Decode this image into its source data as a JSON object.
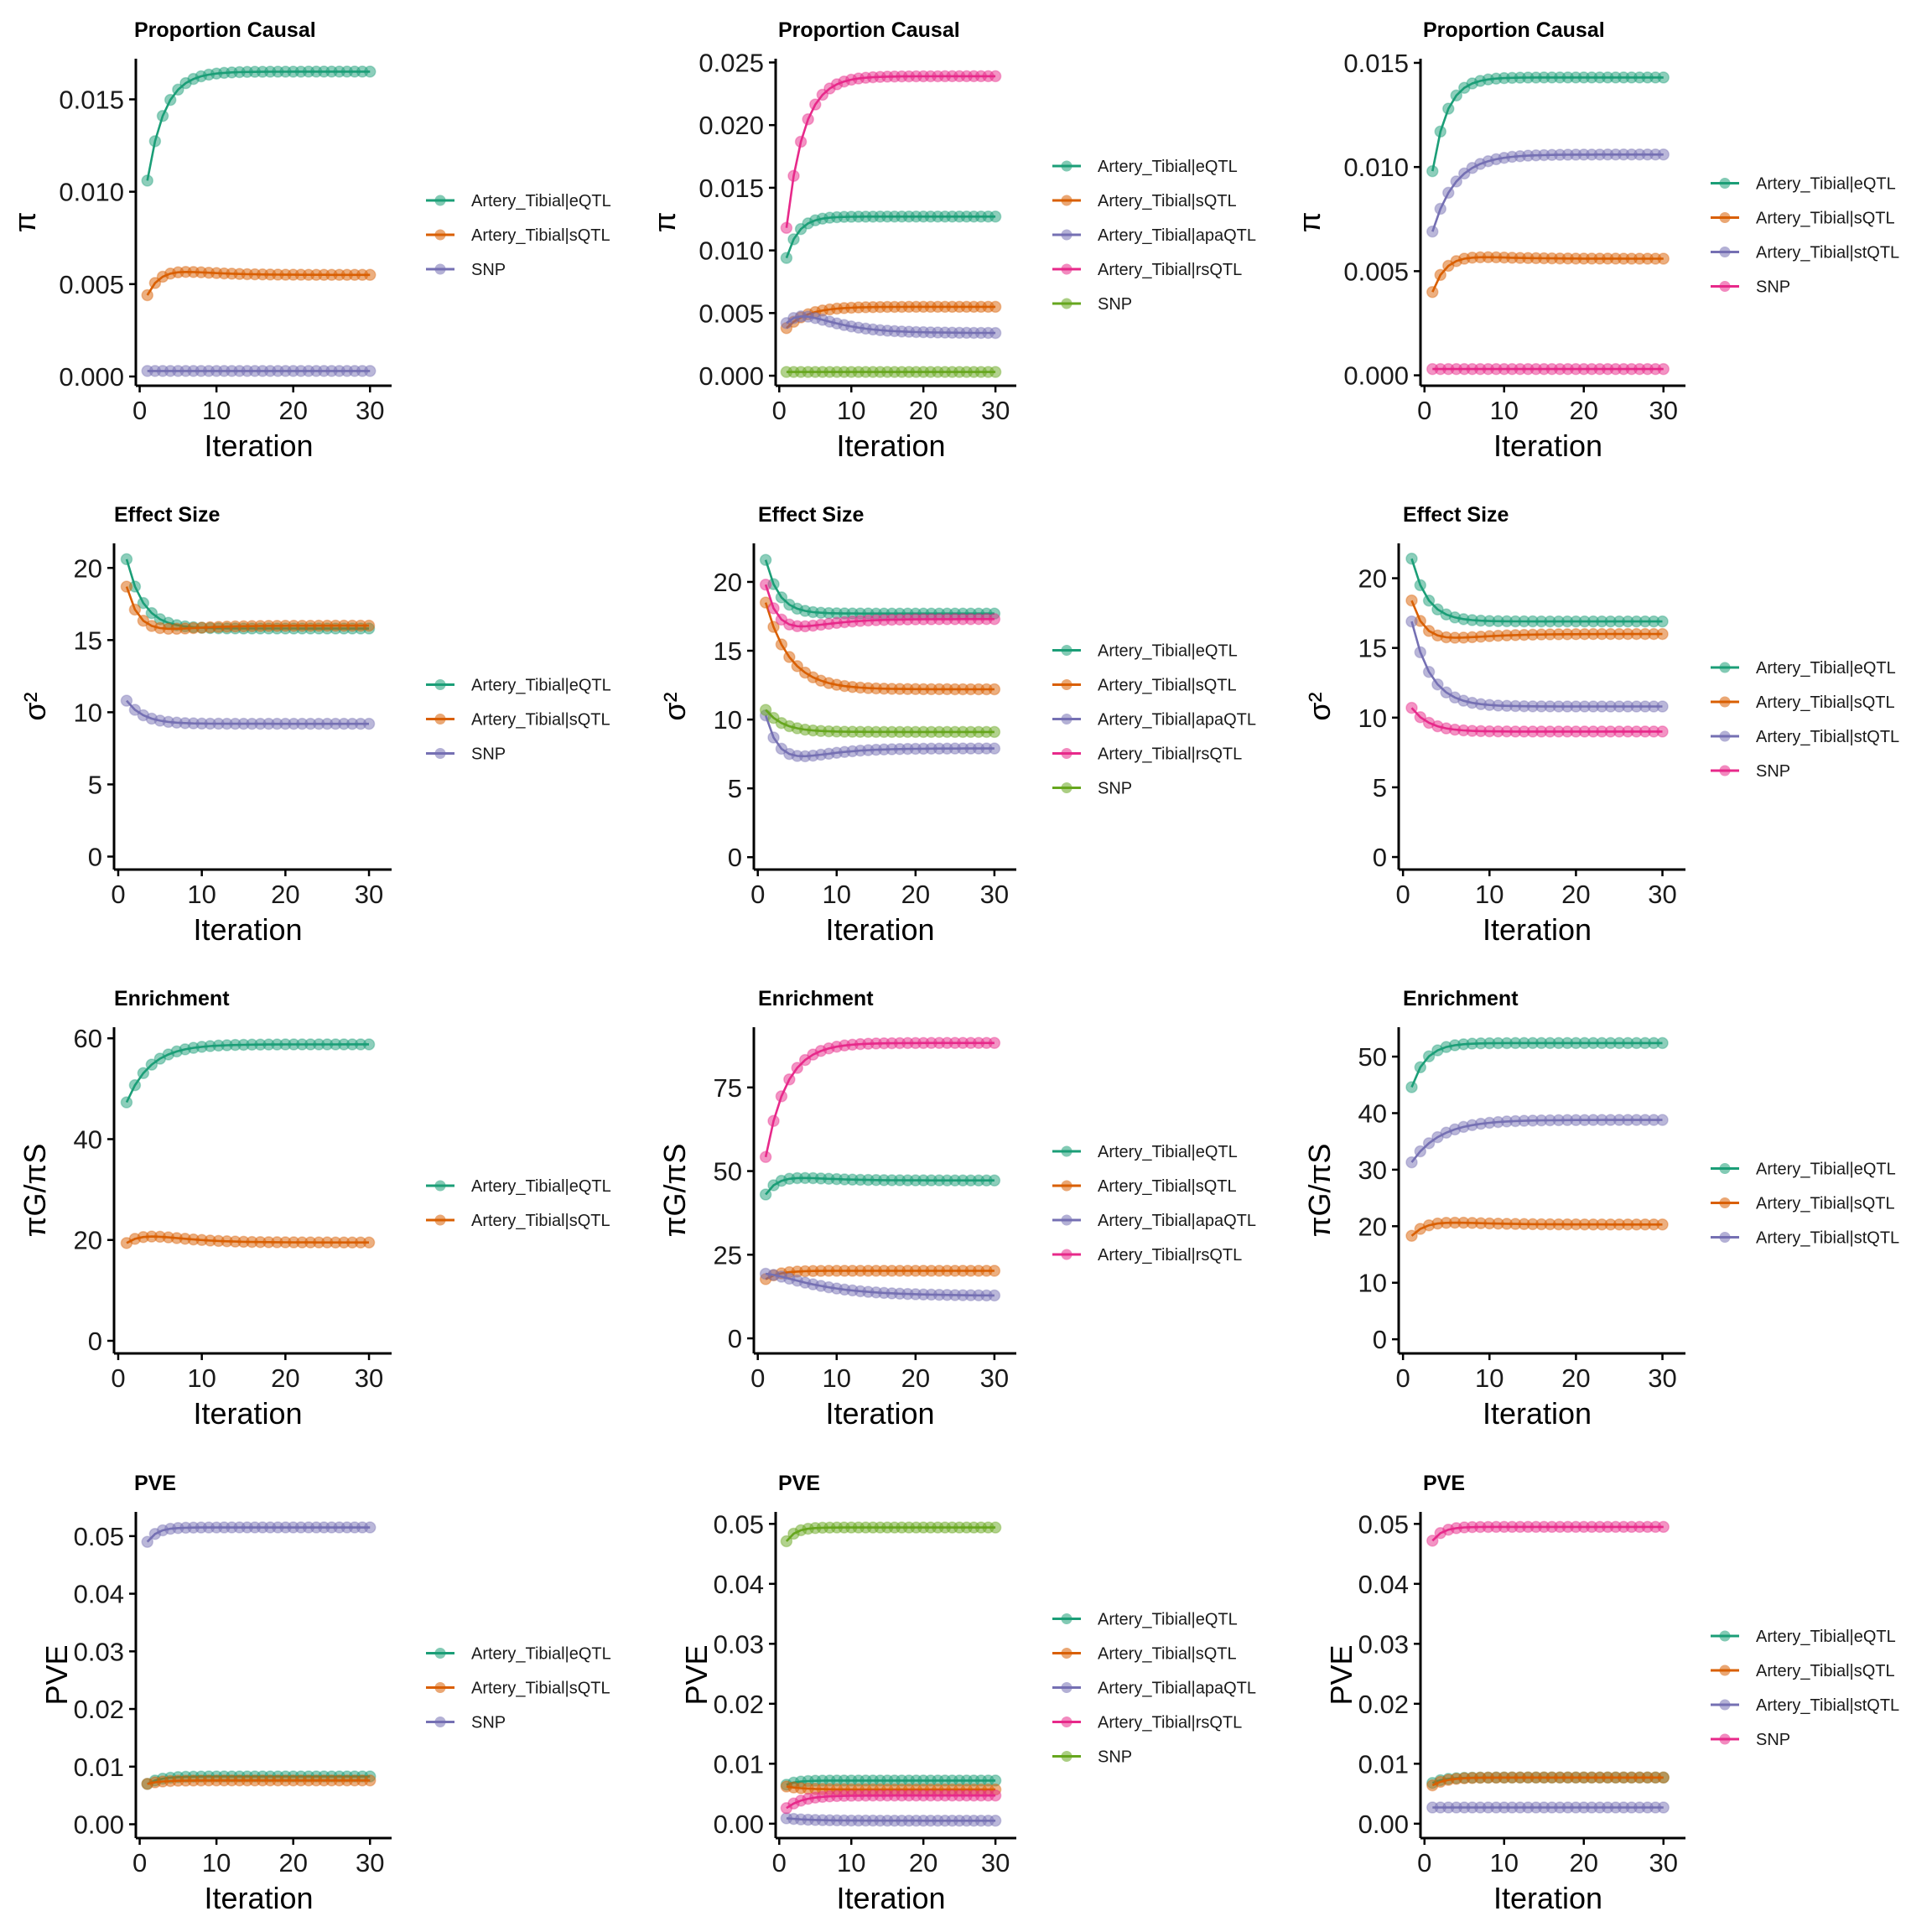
{
  "chart_data": [
    {
      "type": "line",
      "panel": "r1c1",
      "title": "Proportion Causal",
      "ylabel": "π",
      "xlabel": "Iteration",
      "ylim": [
        -0.0005,
        0.0172
      ],
      "yticks": [
        0,
        0.005,
        0.01,
        0.015
      ],
      "ytick_labels": [
        "0.000",
        "0.005",
        "0.010",
        "0.015"
      ],
      "xticks": [
        0,
        10,
        20,
        30
      ],
      "xlim": [
        -0.5,
        31.5
      ],
      "series": [
        {
          "name": "Artery_Tibial|eQTL",
          "color": "#1B9E77",
          "start": 0.0106,
          "end": 0.0165,
          "rate": 0.45
        },
        {
          "name": "Artery_Tibial|sQTL",
          "color": "#D95F02",
          "start": 0.0044,
          "end": 0.0055,
          "rate": 0.6,
          "bump": 0.00025
        },
        {
          "name": "SNP",
          "color": "#7570B3",
          "start": 0.0003,
          "end": 0.0003,
          "rate": 0.5
        }
      ]
    },
    {
      "type": "line",
      "panel": "r1c2",
      "title": "Proportion Causal",
      "ylabel": "π",
      "xlabel": "Iteration",
      "ylim": [
        -0.0008,
        0.0253
      ],
      "yticks": [
        0,
        0.005,
        0.01,
        0.015,
        0.02,
        0.025
      ],
      "ytick_labels": [
        "0.000",
        "0.005",
        "0.010",
        "0.015",
        "0.020",
        "0.025"
      ],
      "xticks": [
        0,
        10,
        20,
        30
      ],
      "xlim": [
        -0.5,
        31.5
      ],
      "series": [
        {
          "name": "Artery_Tibial|eQTL",
          "color": "#1B9E77",
          "start": 0.0094,
          "end": 0.0127,
          "rate": 0.6
        },
        {
          "name": "Artery_Tibial|sQTL",
          "color": "#D95F02",
          "start": 0.0038,
          "end": 0.0055,
          "rate": 0.35
        },
        {
          "name": "Artery_Tibial|apaQTL",
          "color": "#7570B3",
          "start": 0.0042,
          "end": 0.0034,
          "rate": 0.15,
          "bump": 0.0008
        },
        {
          "name": "Artery_Tibial|rsQTL",
          "color": "#E7298A",
          "start": 0.0118,
          "end": 0.0239,
          "rate": 0.42
        },
        {
          "name": "SNP",
          "color": "#66A61E",
          "start": 0.0003,
          "end": 0.0003,
          "rate": 0.5
        }
      ]
    },
    {
      "type": "line",
      "panel": "r1c3",
      "title": "Proportion Causal",
      "ylabel": "π",
      "xlabel": "Iteration",
      "ylim": [
        -0.0005,
        0.0152
      ],
      "yticks": [
        0,
        0.005,
        0.01,
        0.015
      ],
      "ytick_labels": [
        "0.000",
        "0.005",
        "0.010",
        "0.015"
      ],
      "xticks": [
        0,
        10,
        20,
        30
      ],
      "xlim": [
        -0.5,
        31.5
      ],
      "series": [
        {
          "name": "Artery_Tibial|eQTL",
          "color": "#1B9E77",
          "start": 0.0098,
          "end": 0.0143,
          "rate": 0.55
        },
        {
          "name": "Artery_Tibial|sQTL",
          "color": "#D95F02",
          "start": 0.004,
          "end": 0.0056,
          "rate": 0.6,
          "bump": 0.00015
        },
        {
          "name": "Artery_Tibial|stQTL",
          "color": "#7570B3",
          "start": 0.0069,
          "end": 0.0106,
          "rate": 0.35
        },
        {
          "name": "SNP",
          "color": "#E7298A",
          "start": 0.0003,
          "end": 0.0003,
          "rate": 0.5
        }
      ]
    },
    {
      "type": "line",
      "panel": "r2c1",
      "title": "Effect Size",
      "ylabel": "σ²",
      "xlabel": "Iteration",
      "ylim": [
        -0.9,
        21.7
      ],
      "yticks": [
        0,
        5,
        10,
        15,
        20
      ],
      "ytick_labels": [
        "0",
        "5",
        "10",
        "15",
        "20"
      ],
      "xticks": [
        0,
        10,
        20,
        30
      ],
      "xlim": [
        -0.5,
        31.5
      ],
      "series": [
        {
          "name": "Artery_Tibial|eQTL",
          "color": "#1B9E77",
          "start": 20.6,
          "end": 15.8,
          "rate": 0.5
        },
        {
          "name": "Artery_Tibial|sQTL",
          "color": "#D95F02",
          "start": 18.7,
          "end": 16.0,
          "rate": 0.7,
          "bump": -0.35
        },
        {
          "name": "SNP",
          "color": "#7570B3",
          "start": 10.8,
          "end": 9.2,
          "rate": 0.5
        }
      ]
    },
    {
      "type": "line",
      "panel": "r2c2",
      "title": "Effect Size",
      "ylabel": "σ²",
      "xlabel": "Iteration",
      "ylim": [
        -0.9,
        22.8
      ],
      "yticks": [
        0,
        5,
        10,
        15,
        20
      ],
      "ytick_labels": [
        "0",
        "5",
        "10",
        "15",
        "20"
      ],
      "xticks": [
        0,
        10,
        20,
        30
      ],
      "xlim": [
        -0.5,
        31.5
      ],
      "series": [
        {
          "name": "Artery_Tibial|eQTL",
          "color": "#1B9E77",
          "start": 21.6,
          "end": 17.7,
          "rate": 0.6
        },
        {
          "name": "Artery_Tibial|sQTL",
          "color": "#D95F02",
          "start": 18.5,
          "end": 12.2,
          "rate": 0.33
        },
        {
          "name": "Artery_Tibial|apaQTL",
          "color": "#7570B3",
          "start": 10.3,
          "end": 7.9,
          "rate": 0.6,
          "bump": -0.8
        },
        {
          "name": "Artery_Tibial|rsQTL",
          "color": "#E7298A",
          "start": 19.8,
          "end": 17.3,
          "rate": 0.7,
          "bump": -0.7
        },
        {
          "name": "SNP",
          "color": "#66A61E",
          "start": 10.7,
          "end": 9.1,
          "rate": 0.45
        }
      ]
    },
    {
      "type": "line",
      "panel": "r2c3",
      "title": "Effect Size",
      "ylabel": "σ²",
      "xlabel": "Iteration",
      "ylim": [
        -0.9,
        22.5
      ],
      "yticks": [
        0,
        5,
        10,
        15,
        20
      ],
      "ytick_labels": [
        "0",
        "5",
        "10",
        "15",
        "20"
      ],
      "xticks": [
        0,
        10,
        20,
        30
      ],
      "xlim": [
        -0.5,
        31.5
      ],
      "series": [
        {
          "name": "Artery_Tibial|eQTL",
          "color": "#1B9E77",
          "start": 21.4,
          "end": 16.9,
          "rate": 0.55
        },
        {
          "name": "Artery_Tibial|sQTL",
          "color": "#D95F02",
          "start": 18.4,
          "end": 16.0,
          "rate": 0.7,
          "bump": -0.4
        },
        {
          "name": "Artery_Tibial|stQTL",
          "color": "#7570B3",
          "start": 16.9,
          "end": 10.8,
          "rate": 0.45
        },
        {
          "name": "SNP",
          "color": "#E7298A",
          "start": 10.7,
          "end": 9.0,
          "rate": 0.5
        }
      ]
    },
    {
      "type": "line",
      "panel": "r3c1",
      "title": "Enrichment",
      "ylabel": "πG/πS",
      "xlabel": "Iteration",
      "ylim": [
        -2.5,
        62.2
      ],
      "yticks": [
        0,
        20,
        40,
        60
      ],
      "ytick_labels": [
        "0",
        "20",
        "40",
        "60"
      ],
      "xticks": [
        0,
        10,
        20,
        30
      ],
      "xlim": [
        -0.5,
        31.5
      ],
      "series": [
        {
          "name": "Artery_Tibial|eQTL",
          "color": "#1B9E77",
          "start": 47.3,
          "end": 58.8,
          "rate": 0.35
        },
        {
          "name": "Artery_Tibial|sQTL",
          "color": "#D95F02",
          "start": 19.4,
          "end": 19.5,
          "rate": 0.5,
          "bump": 1.2
        }
      ]
    },
    {
      "type": "line",
      "panel": "r3c2",
      "title": "Enrichment",
      "ylabel": "πG/πS",
      "xlabel": "Iteration",
      "ylim": [
        -4.5,
        93
      ],
      "yticks": [
        0,
        25,
        50,
        75
      ],
      "ytick_labels": [
        "0",
        "25",
        "50",
        "75"
      ],
      "xticks": [
        0,
        10,
        20,
        30
      ],
      "xlim": [
        -0.5,
        31.5
      ],
      "series": [
        {
          "name": "Artery_Tibial|eQTL",
          "color": "#1B9E77",
          "start": 43.0,
          "end": 47.2,
          "rate": 0.7,
          "bump": 1.0
        },
        {
          "name": "Artery_Tibial|sQTL",
          "color": "#D95F02",
          "start": 17.7,
          "end": 20.2,
          "rate": 0.6
        },
        {
          "name": "Artery_Tibial|apaQTL",
          "color": "#7570B3",
          "start": 19.3,
          "end": 12.7,
          "rate": 0.14,
          "bump": 0.8
        },
        {
          "name": "Artery_Tibial|rsQTL",
          "color": "#E7298A",
          "start": 54.2,
          "end": 88.3,
          "rate": 0.38
        }
      ]
    },
    {
      "type": "line",
      "panel": "r3c3",
      "title": "Enrichment",
      "ylabel": "πG/πS",
      "xlabel": "Iteration",
      "ylim": [
        -2.5,
        55.2
      ],
      "yticks": [
        0,
        10,
        20,
        30,
        40,
        50
      ],
      "ytick_labels": [
        "0",
        "10",
        "20",
        "30",
        "40",
        "50"
      ],
      "xticks": [
        0,
        10,
        20,
        30
      ],
      "xlim": [
        -0.5,
        31.5
      ],
      "series": [
        {
          "name": "Artery_Tibial|eQTL",
          "color": "#1B9E77",
          "start": 44.6,
          "end": 52.4,
          "rate": 0.6
        },
        {
          "name": "Artery_Tibial|sQTL",
          "color": "#D95F02",
          "start": 18.3,
          "end": 20.3,
          "rate": 0.6,
          "bump": 0.5
        },
        {
          "name": "Artery_Tibial|stQTL",
          "color": "#7570B3",
          "start": 31.3,
          "end": 38.8,
          "rate": 0.3
        }
      ]
    },
    {
      "type": "line",
      "panel": "r4c1",
      "title": "PVE",
      "ylabel": "PVE",
      "xlabel": "Iteration",
      "ylim": [
        -0.0024,
        0.0542
      ],
      "yticks": [
        0,
        0.01,
        0.02,
        0.03,
        0.04,
        0.05
      ],
      "ytick_labels": [
        "0.00",
        "0.01",
        "0.02",
        "0.03",
        "0.04",
        "0.05"
      ],
      "xticks": [
        0,
        10,
        20,
        30
      ],
      "xlim": [
        -0.5,
        31.5
      ],
      "series": [
        {
          "name": "Artery_Tibial|eQTL",
          "color": "#1B9E77",
          "start": 0.007,
          "end": 0.0083,
          "rate": 0.6
        },
        {
          "name": "Artery_Tibial|sQTL",
          "color": "#D95F02",
          "start": 0.007,
          "end": 0.0076,
          "rate": 0.6
        },
        {
          "name": "SNP",
          "color": "#7570B3",
          "start": 0.049,
          "end": 0.0515,
          "rate": 0.8
        }
      ]
    },
    {
      "type": "line",
      "panel": "r4c2",
      "title": "PVE",
      "ylabel": "PVE",
      "xlabel": "Iteration",
      "ylim": [
        -0.0024,
        0.052
      ],
      "yticks": [
        0,
        0.01,
        0.02,
        0.03,
        0.04,
        0.05
      ],
      "ytick_labels": [
        "0.00",
        "0.01",
        "0.02",
        "0.03",
        "0.04",
        "0.05"
      ],
      "xticks": [
        0,
        10,
        20,
        30
      ],
      "xlim": [
        -0.5,
        31.5
      ],
      "series": [
        {
          "name": "Artery_Tibial|eQTL",
          "color": "#1B9E77",
          "start": 0.0065,
          "end": 0.0072,
          "rate": 0.7
        },
        {
          "name": "Artery_Tibial|sQTL",
          "color": "#D95F02",
          "start": 0.0062,
          "end": 0.0057,
          "rate": 0.4
        },
        {
          "name": "Artery_Tibial|apaQTL",
          "color": "#7570B3",
          "start": 0.0009,
          "end": 0.0005,
          "rate": 0.3
        },
        {
          "name": "Artery_Tibial|rsQTL",
          "color": "#E7298A",
          "start": 0.0026,
          "end": 0.0047,
          "rate": 0.45
        },
        {
          "name": "SNP",
          "color": "#66A61E",
          "start": 0.0471,
          "end": 0.0494,
          "rate": 0.8
        }
      ]
    },
    {
      "type": "line",
      "panel": "r4c3",
      "title": "PVE",
      "ylabel": "PVE",
      "xlabel": "Iteration",
      "ylim": [
        -0.0024,
        0.052
      ],
      "yticks": [
        0,
        0.01,
        0.02,
        0.03,
        0.04,
        0.05
      ],
      "ytick_labels": [
        "0.00",
        "0.01",
        "0.02",
        "0.03",
        "0.04",
        "0.05"
      ],
      "xticks": [
        0,
        10,
        20,
        30
      ],
      "xlim": [
        -0.5,
        31.5
      ],
      "series": [
        {
          "name": "Artery_Tibial|eQTL",
          "color": "#1B9E77",
          "start": 0.0068,
          "end": 0.0077,
          "rate": 0.7
        },
        {
          "name": "Artery_Tibial|sQTL",
          "color": "#D95F02",
          "start": 0.0064,
          "end": 0.0077,
          "rate": 0.6
        },
        {
          "name": "Artery_Tibial|stQTL",
          "color": "#7570B3",
          "start": 0.0027,
          "end": 0.0027,
          "rate": 0.5
        },
        {
          "name": "SNP",
          "color": "#E7298A",
          "start": 0.0472,
          "end": 0.0495,
          "rate": 0.8
        }
      ]
    }
  ],
  "x_values_note": "iterations 1..30; each series follows an exponential approach from start to end with given rate",
  "iterations": [
    1,
    30
  ]
}
